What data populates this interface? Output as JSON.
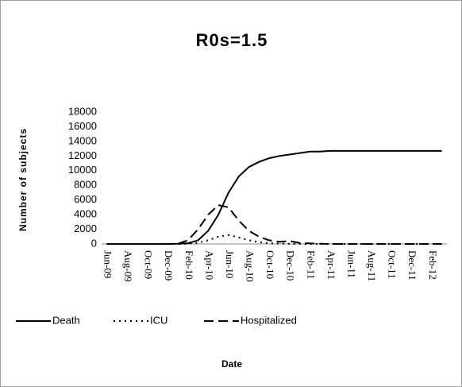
{
  "chart_data": {
    "type": "line",
    "title": "R0s=1.5",
    "y_label": "Number of subjects",
    "x_label": "Date",
    "categories": [
      "Jun-09",
      null,
      "Aug-09",
      null,
      "Oct-09",
      null,
      "Dec-09",
      null,
      "Feb-10",
      null,
      "Apr-10",
      null,
      "Jun-10",
      null,
      "Aug-10",
      null,
      "Oct-10",
      null,
      "Dec-10",
      null,
      "Feb-11",
      null,
      "Apr-11",
      null,
      "Jun-11",
      null,
      "Aug-11",
      null,
      "Oct-11",
      null,
      "Dec-11",
      null,
      "Feb-12",
      null
    ],
    "series": [
      {
        "name": "Death",
        "color": "#000000",
        "style": "solid",
        "values": [
          0,
          0,
          0,
          0,
          0,
          0,
          0,
          20,
          100,
          500,
          1800,
          4000,
          7000,
          9200,
          10500,
          11200,
          11700,
          12000,
          12200,
          12400,
          12600,
          12600,
          12700,
          12700,
          12700,
          12700,
          12700,
          12700,
          12700,
          12700,
          12700,
          12700,
          12700,
          12700
        ]
      },
      {
        "name": "ICU",
        "color": "#000000",
        "style": "dotted",
        "values": [
          0,
          0,
          0,
          0,
          0,
          0,
          0,
          0,
          20,
          150,
          500,
          1000,
          1200,
          900,
          500,
          250,
          100,
          50,
          30,
          10,
          0,
          0,
          0,
          0,
          0,
          0,
          0,
          0,
          0,
          0,
          0,
          0,
          0,
          0
        ]
      },
      {
        "name": "Hospitalized",
        "color": "#000000",
        "style": "dashed",
        "values": [
          0,
          0,
          0,
          0,
          0,
          0,
          0,
          30,
          500,
          2000,
          4000,
          5300,
          5000,
          3200,
          1800,
          1000,
          500,
          300,
          400,
          150,
          80,
          30,
          0,
          0,
          0,
          0,
          0,
          0,
          0,
          0,
          0,
          0,
          0,
          0
        ]
      }
    ],
    "ylim": [
      0,
      18000
    ],
    "yticks": [
      0,
      2000,
      4000,
      6000,
      8000,
      10000,
      12000,
      14000,
      16000,
      18000
    ],
    "grid": false,
    "legend": "bottom"
  }
}
